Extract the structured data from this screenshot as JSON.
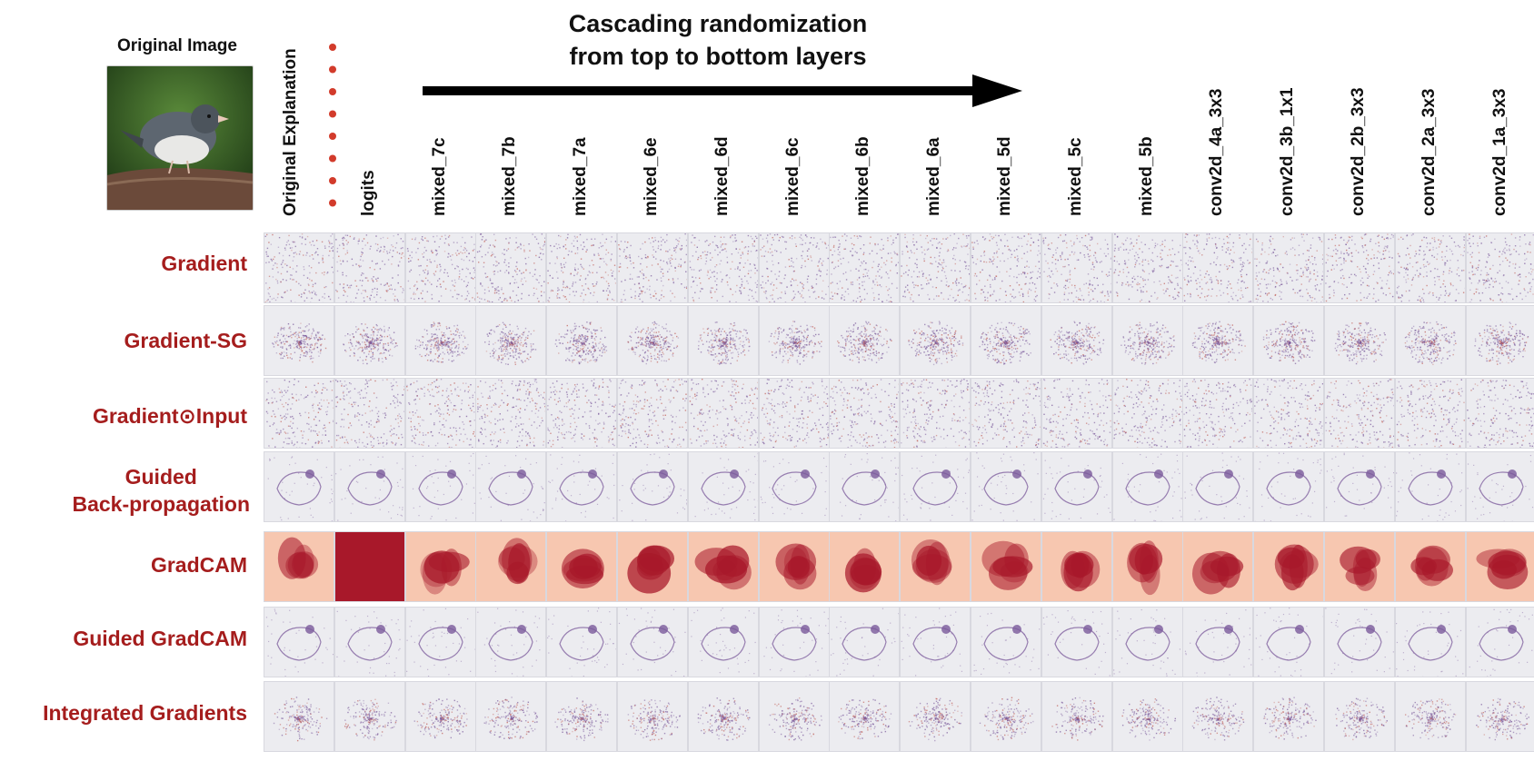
{
  "original_image": {
    "title": "Original Image"
  },
  "headline": {
    "line1": "Cascading randomization",
    "line2": "from top to bottom layers"
  },
  "columns": [
    "Original Explanation",
    "logits",
    "mixed_7c",
    "mixed_7b",
    "mixed_7a",
    "mixed_6e",
    "mixed_6d",
    "mixed_6c",
    "mixed_6b",
    "mixed_6a",
    "mixed_5d",
    "mixed_5c",
    "mixed_5b",
    "conv2d_4a_3x3",
    "conv2d_3b_1x1",
    "conv2d_2b_3x3",
    "conv2d_2a_3x3",
    "conv2d_1a_3x3"
  ],
  "rows": [
    {
      "label": "Gradient",
      "style": "noise"
    },
    {
      "label": "Gradient-SG",
      "style": "sg"
    },
    {
      "label": "Gradient⊙Input",
      "style": "noise"
    },
    {
      "label_lines": [
        "Guided",
        "Back-propagation"
      ],
      "style": "guided"
    },
    {
      "label": "GradCAM",
      "style": "cam"
    },
    {
      "label": "Guided GradCAM",
      "style": "guided"
    },
    {
      "label": "Integrated Gradients",
      "style": "ig"
    }
  ],
  "colors": {
    "row_label": "#a51d1d",
    "dots": "#d23b2b",
    "cam_dark": "#a8182a",
    "cam_light": "#f7c7b0",
    "saliency": "#7b5a9b"
  },
  "icons": {
    "arrow": "right-arrow-icon",
    "dots": "vertical-dots-icon"
  }
}
